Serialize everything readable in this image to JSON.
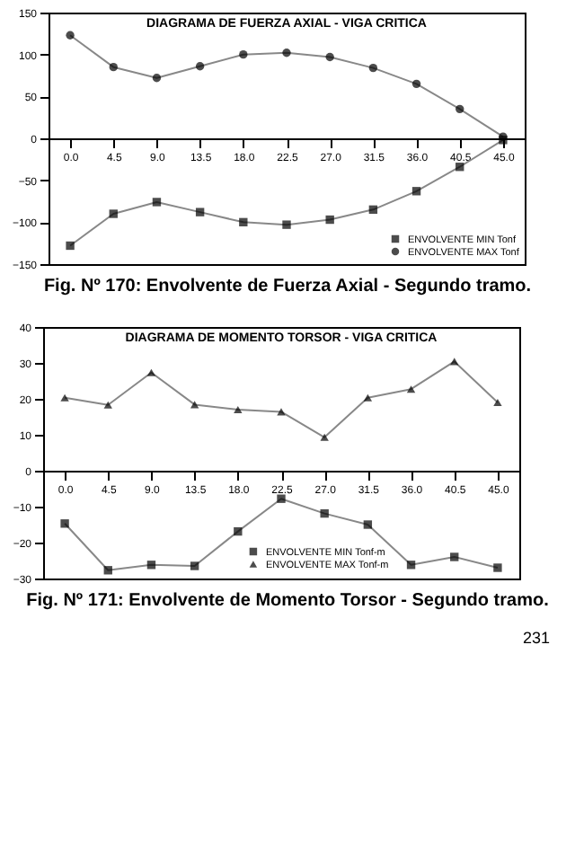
{
  "chart_data": [
    {
      "type": "line",
      "title": "DIAGRAMA DE FUERZA AXIAL - VIGA CRITICA",
      "categories": [
        "0.0",
        "4.5",
        "9.0",
        "13.5",
        "18.0",
        "22.5",
        "27.0",
        "31.5",
        "36.0",
        "40.5",
        "45.0"
      ],
      "series": [
        {
          "name": "ENVOLVENTE MIN Tonf",
          "color": "#000000",
          "marker": "square",
          "values": [
            -128,
            -90,
            -76,
            -88,
            -100,
            -103,
            -97,
            -85,
            -63,
            -34,
            -2
          ]
        },
        {
          "name": "ENVOLVENTE MAX Tonf",
          "color": "#000000",
          "marker": "circle",
          "values": [
            123,
            85,
            72,
            86,
            100,
            102,
            97,
            84,
            65,
            35,
            2
          ]
        }
      ],
      "ylim": [
        -150,
        150
      ],
      "yticks": [
        -150,
        -100,
        -50,
        0,
        50,
        100,
        150
      ],
      "grid": false,
      "legend": "bottom right",
      "annotations": [
        "Fig. Nº 170: Envolvente de Fuerza Axial - Segundo tramo."
      ]
    },
    {
      "type": "line",
      "title": "DIAGRAMA DE MOMENTO TORSOR - VIGA CRITICA",
      "categories": [
        "0.0",
        "4.5",
        "9.0",
        "13.5",
        "18.0",
        "22.5",
        "27.0",
        "31.5",
        "36.0",
        "40.5",
        "45.0"
      ],
      "series": [
        {
          "name": "ENVOLVENTE MIN Tonf-m",
          "color": "#000000",
          "marker": "square",
          "values": [
            -14.7,
            -27.7,
            -26.2,
            -26.5,
            -16.9,
            -7.8,
            -11.9,
            -15,
            -26.2,
            -24,
            -27
          ]
        },
        {
          "name": "ENVOLVENTE MAX Tonf-m",
          "color": "#000000",
          "marker": "triangle",
          "values": [
            20.3,
            18.3,
            27.3,
            18.4,
            17,
            16.4,
            9.3,
            20.3,
            22.7,
            30.4,
            19
          ]
        }
      ],
      "ylim": [
        -30,
        40
      ],
      "yticks": [
        -30,
        -20,
        -10,
        0,
        10,
        20,
        30,
        40
      ],
      "grid": false,
      "legend": "bottom",
      "annotations": [
        "Fig. Nº 171: Envolvente de Momento Torsor - Segundo tramo.",
        "231"
      ]
    }
  ]
}
